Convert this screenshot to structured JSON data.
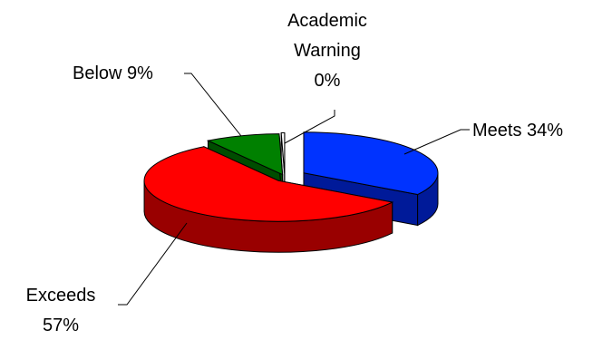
{
  "chart_data": {
    "type": "pie",
    "title": "",
    "categories": [
      "Meets",
      "Exceeds",
      "Below",
      "Academic Warning"
    ],
    "values": [
      34,
      57,
      9,
      0
    ],
    "unit": "%",
    "style": "3d-exploded",
    "colors": {
      "Meets": "#0033ff",
      "Exceeds": "#ff0000",
      "Below": "#008000",
      "Academic Warning": "#ffffff"
    },
    "side_colors": {
      "Meets": "#001a99",
      "Exceeds": "#990000",
      "Below": "#004d00",
      "Academic Warning": "#cccccc"
    },
    "labels": [
      {
        "category": "Meets",
        "lines": [
          "Meets 34%"
        ]
      },
      {
        "category": "Exceeds",
        "lines": [
          "Exceeds",
          "57%"
        ]
      },
      {
        "category": "Below",
        "lines": [
          "Below 9%"
        ]
      },
      {
        "category": "Academic Warning",
        "lines": [
          "Academic",
          "Warning",
          "0%"
        ]
      }
    ]
  }
}
